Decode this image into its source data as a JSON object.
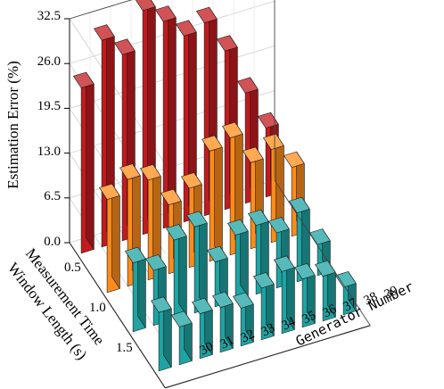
{
  "chart_data": {
    "type": "bar3d",
    "zlabel": "Estimation Error (%)",
    "xlabel": "Generator Number",
    "ylabel_line1": "Measurement Time",
    "ylabel_line2": "Window Length (s)",
    "zlim": [
      0,
      32.5
    ],
    "zticks": [
      "0.0",
      "6.5",
      "13.0",
      "19.5",
      "26.0",
      "32.5"
    ],
    "x_categories": [
      "30",
      "31",
      "32",
      "33",
      "34",
      "35",
      "36",
      "37",
      "38",
      "39"
    ],
    "y_ticks": [
      "0.5",
      "1.0",
      "1.5"
    ],
    "grid": true,
    "series": [
      {
        "y": "0.5",
        "color": "#c21a1e",
        "values": [
          24.0,
          30.0,
          27.0,
          32.5,
          30.0,
          27.0,
          28.0,
          23.0,
          16.0,
          10.0
        ]
      },
      {
        "y": "1.0",
        "color": "#ff8c1a",
        "values": [
          13.5,
          15.5,
          14.5,
          10.0,
          11.5,
          16.0,
          17.0,
          12.5,
          13.5,
          10.0
        ]
      },
      {
        "y": "1.5",
        "color": "#1fa3a3",
        "values": [
          10.0,
          8.0,
          11.5,
          12.5,
          6.5,
          9.5,
          10.0,
          8.0,
          10.0,
          4.5
        ]
      },
      {
        "y": "2.0",
        "color": "#1fa3a3",
        "values": [
          8.5,
          5.5,
          6.5,
          6.5,
          5.5,
          7.5,
          9.0,
          7.0,
          6.5,
          4.0
        ]
      }
    ]
  }
}
